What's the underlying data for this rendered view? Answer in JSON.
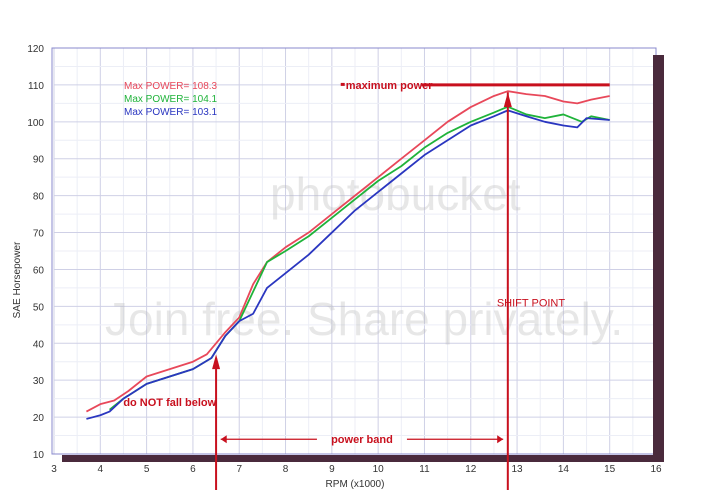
{
  "chart_data": {
    "type": "line",
    "title": "",
    "xlabel": "RPM (x1000)",
    "ylabel": "SAE Horsepower",
    "xlim": [
      3,
      16
    ],
    "ylim": [
      10,
      120
    ],
    "xticks": [
      3,
      4,
      5,
      6,
      7,
      8,
      9,
      10,
      11,
      12,
      13,
      14,
      15,
      16
    ],
    "yticks": [
      10,
      20,
      30,
      40,
      50,
      60,
      70,
      80,
      90,
      100,
      110,
      120
    ],
    "grid": true,
    "legend": [
      {
        "text": "Max POWER= 108.3",
        "color": "#e8485a"
      },
      {
        "text": "Max POWER= 104.1",
        "color": "#1fb33a"
      },
      {
        "text": "Max POWER= 103.1",
        "color": "#2a36c0"
      }
    ],
    "series": [
      {
        "name": "Max POWER= 108.3",
        "color": "#e8485a",
        "points": [
          [
            3.7,
            21.5
          ],
          [
            4,
            23.5
          ],
          [
            4.3,
            24.5
          ],
          [
            4.6,
            27
          ],
          [
            5,
            31
          ],
          [
            5.5,
            33
          ],
          [
            6,
            35
          ],
          [
            6.3,
            37
          ],
          [
            6.5,
            40
          ],
          [
            6.7,
            43
          ],
          [
            7,
            47
          ],
          [
            7.3,
            56
          ],
          [
            7.6,
            62
          ],
          [
            8,
            66
          ],
          [
            8.5,
            70
          ],
          [
            9,
            75
          ],
          [
            9.5,
            80
          ],
          [
            10,
            85
          ],
          [
            10.5,
            90
          ],
          [
            11,
            95
          ],
          [
            11.5,
            100
          ],
          [
            12,
            104
          ],
          [
            12.5,
            107
          ],
          [
            12.8,
            108.3
          ],
          [
            13.2,
            107.5
          ],
          [
            13.6,
            107
          ],
          [
            14,
            105.5
          ],
          [
            14.3,
            105
          ],
          [
            14.6,
            106
          ],
          [
            15,
            107
          ]
        ]
      },
      {
        "name": "Max POWER= 104.1",
        "color": "#1fb33a",
        "points": [
          [
            4.2,
            22
          ],
          [
            4.5,
            25
          ],
          [
            5,
            29
          ],
          [
            5.5,
            31
          ],
          [
            6,
            33
          ],
          [
            6.4,
            36
          ],
          [
            6.7,
            42
          ],
          [
            7,
            46
          ],
          [
            7.3,
            54
          ],
          [
            7.6,
            62
          ],
          [
            8,
            65
          ],
          [
            8.5,
            69
          ],
          [
            9,
            74
          ],
          [
            9.5,
            79
          ],
          [
            10,
            84
          ],
          [
            10.5,
            88
          ],
          [
            11,
            93
          ],
          [
            11.5,
            97
          ],
          [
            12,
            100
          ],
          [
            12.5,
            102.5
          ],
          [
            12.8,
            104.1
          ],
          [
            13.2,
            102
          ],
          [
            13.6,
            101
          ],
          [
            14,
            102
          ],
          [
            14.4,
            100
          ],
          [
            14.6,
            101.5
          ],
          [
            15,
            100.5
          ]
        ]
      },
      {
        "name": "Max POWER= 103.1",
        "color": "#2a36c0",
        "points": [
          [
            3.7,
            19.5
          ],
          [
            4,
            20.5
          ],
          [
            4.2,
            21.5
          ],
          [
            4.5,
            25
          ],
          [
            5,
            29
          ],
          [
            5.5,
            31
          ],
          [
            6,
            33
          ],
          [
            6.4,
            36
          ],
          [
            6.7,
            42
          ],
          [
            7,
            46
          ],
          [
            7.3,
            48
          ],
          [
            7.6,
            55
          ],
          [
            8,
            59
          ],
          [
            8.5,
            64
          ],
          [
            9,
            70
          ],
          [
            9.5,
            76
          ],
          [
            10,
            81
          ],
          [
            10.5,
            86
          ],
          [
            11,
            91
          ],
          [
            11.5,
            95
          ],
          [
            12,
            99
          ],
          [
            12.5,
            101.5
          ],
          [
            12.8,
            103.1
          ],
          [
            13.2,
            101.5
          ],
          [
            13.6,
            100
          ],
          [
            14,
            99
          ],
          [
            14.3,
            98.5
          ],
          [
            14.5,
            101
          ],
          [
            15,
            100.5
          ]
        ]
      }
    ],
    "annotations": {
      "max_power": {
        "text": "maximum power",
        "y": 110,
        "x_from": 9.3,
        "x_to": 15
      },
      "shift_point": {
        "text": "SHIFT POINT",
        "x": 12.8
      },
      "min_rpm": {
        "text": "do NOT fall below",
        "x": 6.5
      },
      "power_band": {
        "text": "power band",
        "x_from": 6.6,
        "x_to": 12.7
      }
    },
    "annotation_color": "#c8101e"
  },
  "watermark": {
    "line1": "photobucket",
    "line2": "Join free. Share privately."
  }
}
